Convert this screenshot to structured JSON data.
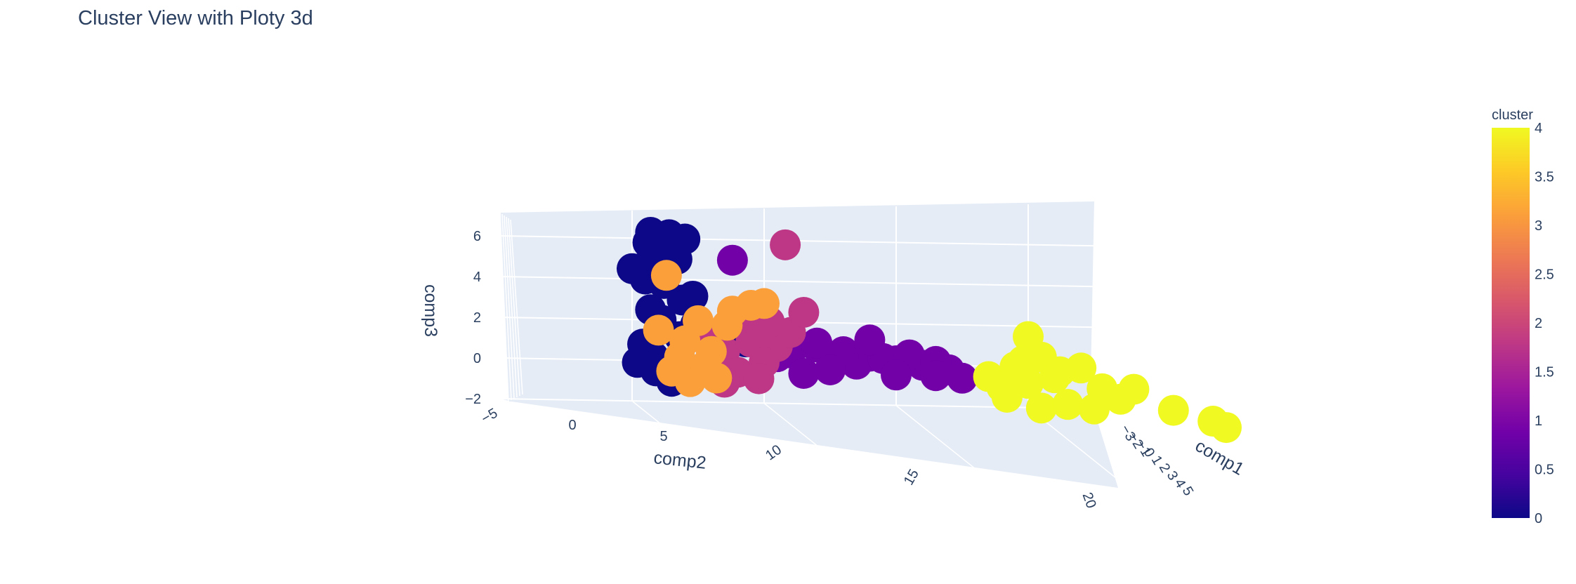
{
  "chart_data": {
    "type": "scatter",
    "title": "Cluster View with Ploty 3d",
    "axes": {
      "x": {
        "label": "comp2",
        "ticks": [
          "−5",
          "0",
          "5",
          "10",
          "15",
          "20"
        ],
        "range": [
          -5,
          22
        ]
      },
      "y": {
        "label": "comp1",
        "ticks": [
          "−3",
          "−2",
          "−1",
          "0",
          "1",
          "2",
          "3",
          "4",
          "5"
        ]
      },
      "z": {
        "label": "comp3",
        "ticks": [
          "−2",
          "0",
          "2",
          "4",
          "6"
        ],
        "range": [
          -2,
          7
        ]
      }
    },
    "colorbar": {
      "title": "cluster",
      "ticks": [
        "0",
        "0.5",
        "1",
        "1.5",
        "2",
        "2.5",
        "3",
        "3.5",
        "4"
      ],
      "range": [
        0,
        4
      ],
      "colorscale": [
        "#0d0887",
        "#46039f",
        "#7201a8",
        "#9c179e",
        "#bd3786",
        "#d8576b",
        "#ed7953",
        "#fb9f3a",
        "#fdca26",
        "#f0f921"
      ]
    },
    "series": [
      {
        "cluster": 0,
        "x": [
          1.0,
          0.0,
          0.6,
          1.4,
          2.0,
          1.7,
          0.3,
          0.5,
          1.2,
          2.3,
          1.9,
          0.7,
          1.1,
          2.4,
          0.4,
          0.8,
          1.5,
          0.9,
          0.2,
          1.8,
          0.9,
          0.7,
          1.3,
          3.5,
          4.3,
          4.8
        ],
        "z": [
          5.0,
          4.5,
          5.8,
          6.2,
          6.0,
          5.0,
          4.5,
          4.0,
          3.8,
          3.2,
          3.0,
          2.5,
          2.0,
          1.8,
          0.8,
          0.2,
          -1.0,
          -0.5,
          -0.1,
          1.2,
          5.5,
          6.3,
          4.8,
          0.5,
          1.0,
          1.5
        ]
      },
      {
        "cluster": 1,
        "x": [
          6,
          7,
          8,
          9,
          10,
          11,
          12,
          6.5,
          7.5,
          8.5,
          9.5,
          10.5,
          11.5,
          7,
          9,
          10,
          11.5,
          12.5,
          8,
          7.5,
          5.5,
          3.8
        ],
        "z": [
          0.5,
          0.8,
          0.6,
          0.4,
          0.2,
          0.0,
          -0.2,
          -0.5,
          -0.3,
          0.0,
          0.3,
          0.5,
          0.2,
          1.0,
          1.2,
          -0.5,
          -0.5,
          -0.6,
          0.3,
          -0.3,
          0.3,
          5.0
        ]
      },
      {
        "cluster": 2,
        "x": [
          3.5,
          4.5,
          5.5,
          4.0,
          5.0,
          6.0,
          3.0,
          4.2,
          5.2,
          6.5,
          2.8,
          4.8,
          3.5,
          5.8
        ],
        "z": [
          0.5,
          1.0,
          0.8,
          -0.5,
          0.0,
          1.5,
          1.2,
          2.2,
          2.0,
          2.5,
          -0.2,
          -0.8,
          -1.0,
          5.8
        ]
      },
      {
        "cluster": 3,
        "x": [
          1.0,
          2.0,
          3.0,
          2.5,
          3.8,
          4.5,
          1.5,
          2.2,
          3.2,
          1.3,
          2.8,
          1.8,
          3.6,
          5.0
        ],
        "z": [
          1.5,
          1.0,
          0.5,
          2.0,
          2.5,
          2.8,
          -0.5,
          -1.0,
          -0.8,
          4.2,
          -0.2,
          0.2,
          1.8,
          2.9
        ]
      },
      {
        "cluster": 4,
        "x": [
          13.5,
          14.5,
          15.5,
          14.0,
          15.0,
          16.0,
          17.0,
          15.5,
          16.5,
          17.5,
          18.5,
          15.0,
          14.2,
          19.0,
          20.5,
          22.0,
          22.5,
          16.2,
          17.8,
          14.8
        ],
        "z": [
          -0.5,
          0.0,
          0.5,
          -1.0,
          -0.8,
          -0.5,
          0.0,
          -2.0,
          -1.8,
          -2.0,
          -1.5,
          1.5,
          -1.5,
          -1.0,
          -2.0,
          -2.5,
          -2.8,
          -0.2,
          -1.0,
          0.3
        ]
      }
    ]
  }
}
